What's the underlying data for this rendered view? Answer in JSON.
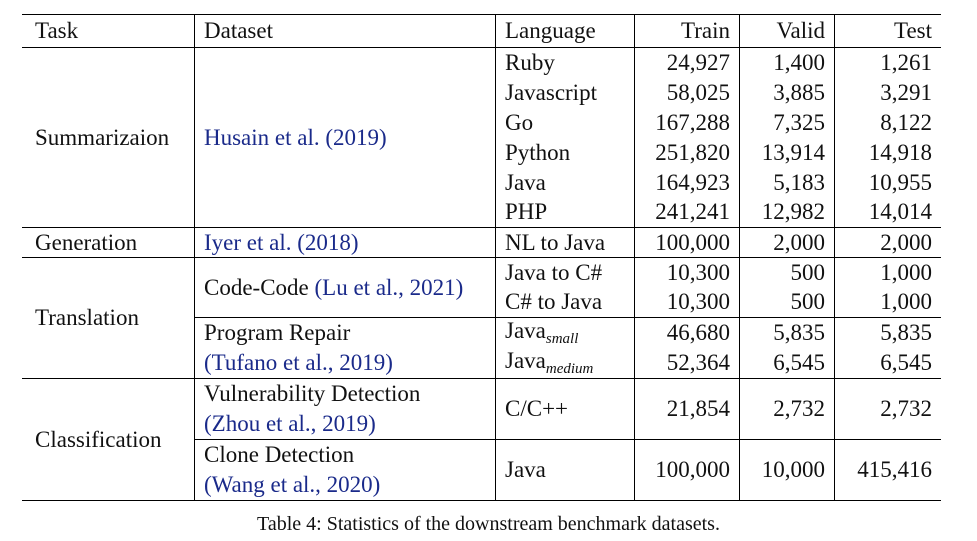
{
  "headers": {
    "task": "Task",
    "dataset": "Dataset",
    "language": "Language",
    "train": "Train",
    "valid": "Valid",
    "test": "Test"
  },
  "groups": {
    "summarization": {
      "task": "Summarizaion",
      "dataset_cite": "Husain et al. (2019)",
      "rows": [
        {
          "language": "Ruby",
          "train": "24,927",
          "valid": "1,400",
          "test": "1,261"
        },
        {
          "language": "Javascript",
          "train": "58,025",
          "valid": "3,885",
          "test": "3,291"
        },
        {
          "language": "Go",
          "train": "167,288",
          "valid": "7,325",
          "test": "8,122"
        },
        {
          "language": "Python",
          "train": "251,820",
          "valid": "13,914",
          "test": "14,918"
        },
        {
          "language": "Java",
          "train": "164,923",
          "valid": "5,183",
          "test": "10,955"
        },
        {
          "language": "PHP",
          "train": "241,241",
          "valid": "12,982",
          "test": "14,014"
        }
      ]
    },
    "generation": {
      "task": "Generation",
      "dataset_cite": "Iyer et al. (2018)",
      "row": {
        "language": "NL to Java",
        "train": "100,000",
        "valid": "2,000",
        "test": "2,000"
      }
    },
    "translation": {
      "task": "Translation",
      "code_code": {
        "dataset": "Code-Code",
        "dataset_cite": "(Lu et al., 2021)",
        "rows": [
          {
            "language": "Java to C#",
            "train": "10,300",
            "valid": "500",
            "test": "1,000"
          },
          {
            "language": "C# to Java",
            "train": "10,300",
            "valid": "500",
            "test": "1,000"
          }
        ]
      },
      "program_repair": {
        "dataset": "Program Repair",
        "dataset_cite": "(Tufano et al., 2019)",
        "rows": [
          {
            "language": "Java",
            "language_sub": "small",
            "train": "46,680",
            "valid": "5,835",
            "test": "5,835"
          },
          {
            "language": "Java",
            "language_sub": "medium",
            "train": "52,364",
            "valid": "6,545",
            "test": "6,545"
          }
        ]
      }
    },
    "classification": {
      "task": "Classification",
      "vulnerability": {
        "dataset": "Vulnerability Detection",
        "dataset_cite": "(Zhou et al., 2019)",
        "row": {
          "language": "C/C++",
          "train": "21,854",
          "valid": "2,732",
          "test": "2,732"
        }
      },
      "clone": {
        "dataset": "Clone Detection",
        "dataset_cite": "(Wang et al., 2020)",
        "row": {
          "language": "Java",
          "train": "100,000",
          "valid": "10,000",
          "test": "415,416"
        }
      }
    }
  },
  "caption": "Table 4: Statistics of the downstream benchmark datasets.",
  "colors": {
    "citation": "#1a2a8a",
    "text": "#111111",
    "rule": "#000000"
  }
}
